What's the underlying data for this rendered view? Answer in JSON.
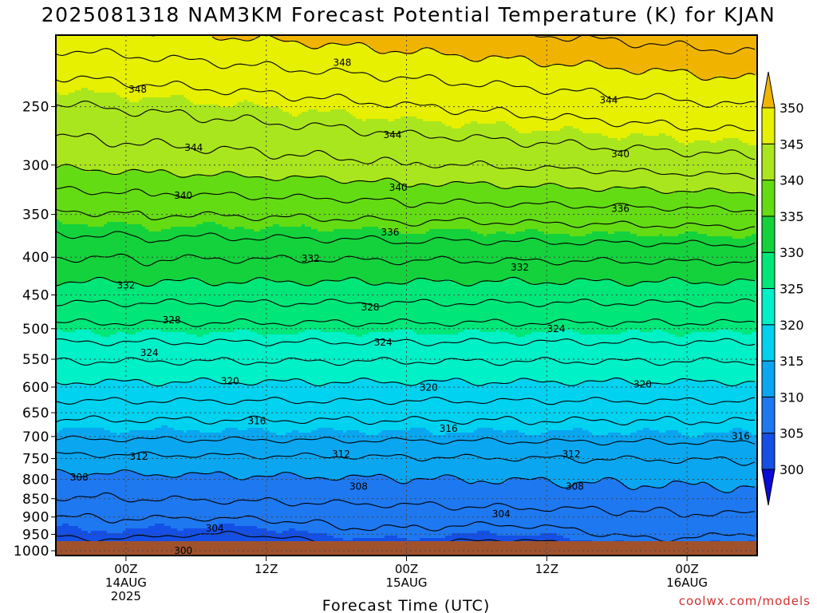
{
  "title": "2025081318 NAM3KM Forecast Potential Temperature (K) for KJAN",
  "credit": "coolwx.com/models",
  "colors": {
    "bands": [
      "#0a0ad6",
      "#1450e6",
      "#1e78f0",
      "#0aa6f0",
      "#00d2f0",
      "#00f0c8",
      "#00e678",
      "#14d23c",
      "#64dc14",
      "#aae61e",
      "#e6f000",
      "#ffe600",
      "#f0b400"
    ],
    "ground": "#a0522d",
    "contour": "#000000",
    "grid": "#444444"
  },
  "chart_data": {
    "type": "contour",
    "title": "2025081318 NAM3KM Forecast Potential Temperature (K) for KJAN",
    "xlabel": "Forecast Time (UTC)",
    "ylabel": "",
    "x_range_hours": [
      -6,
      54
    ],
    "y_axis": {
      "scale": "log-pressure",
      "range_hPa": [
        1015,
        200
      ],
      "reversed": true
    },
    "y_ticks": [
      250,
      300,
      350,
      400,
      450,
      500,
      550,
      600,
      650,
      700,
      750,
      800,
      850,
      900,
      950,
      1000
    ],
    "x_ticks": [
      {
        "hour": 0,
        "lines": [
          "00Z",
          "14AUG",
          "2025"
        ]
      },
      {
        "hour": 12,
        "lines": [
          "12Z"
        ]
      },
      {
        "hour": 24,
        "lines": [
          "00Z",
          "15AUG"
        ]
      },
      {
        "hour": 36,
        "lines": [
          "12Z"
        ]
      },
      {
        "hour": 48,
        "lines": [
          "00Z",
          "16AUG"
        ]
      }
    ],
    "colorbar": {
      "levels": [
        300,
        305,
        310,
        315,
        320,
        325,
        330,
        335,
        340,
        345,
        350
      ],
      "extend": "both"
    },
    "grid": true,
    "contour_interval_K": 2,
    "contour_labels": [
      {
        "value": 348,
        "x_hour": 1.0,
        "p": 237
      },
      {
        "value": 348,
        "x_hour": 18.5,
        "p": 218
      },
      {
        "value": 344,
        "x_hour": 5.8,
        "p": 284
      },
      {
        "value": 344,
        "x_hour": 22.8,
        "p": 273
      },
      {
        "value": 344,
        "x_hour": 41.3,
        "p": 245
      },
      {
        "value": 340,
        "x_hour": 4.9,
        "p": 330
      },
      {
        "value": 340,
        "x_hour": 23.3,
        "p": 322
      },
      {
        "value": 340,
        "x_hour": 42.3,
        "p": 290
      },
      {
        "value": 336,
        "x_hour": 22.6,
        "p": 370
      },
      {
        "value": 336,
        "x_hour": 42.3,
        "p": 344
      },
      {
        "value": 332,
        "x_hour": 15.8,
        "p": 402
      },
      {
        "value": 332,
        "x_hour": 33.7,
        "p": 413
      },
      {
        "value": 332,
        "x_hour": 0.0,
        "p": 437
      },
      {
        "value": 328,
        "x_hour": 3.9,
        "p": 487
      },
      {
        "value": 328,
        "x_hour": 20.9,
        "p": 468
      },
      {
        "value": 324,
        "x_hour": 2.0,
        "p": 539
      },
      {
        "value": 324,
        "x_hour": 22.0,
        "p": 522
      },
      {
        "value": 324,
        "x_hour": 36.8,
        "p": 500
      },
      {
        "value": 320,
        "x_hour": 8.9,
        "p": 589
      },
      {
        "value": 320,
        "x_hour": 25.9,
        "p": 601
      },
      {
        "value": 320,
        "x_hour": 44.2,
        "p": 595
      },
      {
        "value": 316,
        "x_hour": 11.2,
        "p": 667
      },
      {
        "value": 316,
        "x_hour": 27.6,
        "p": 683
      },
      {
        "value": 316,
        "x_hour": 52.6,
        "p": 699
      },
      {
        "value": 312,
        "x_hour": 1.1,
        "p": 745
      },
      {
        "value": 312,
        "x_hour": 18.4,
        "p": 740
      },
      {
        "value": 312,
        "x_hour": 38.1,
        "p": 740
      },
      {
        "value": 308,
        "x_hour": -4.0,
        "p": 795
      },
      {
        "value": 308,
        "x_hour": 19.9,
        "p": 818
      },
      {
        "value": 308,
        "x_hour": 38.4,
        "p": 818
      },
      {
        "value": 304,
        "x_hour": 7.6,
        "p": 933
      },
      {
        "value": 304,
        "x_hour": 32.1,
        "p": 892
      },
      {
        "value": 300,
        "x_hour": 4.9,
        "p": 1000
      }
    ]
  }
}
